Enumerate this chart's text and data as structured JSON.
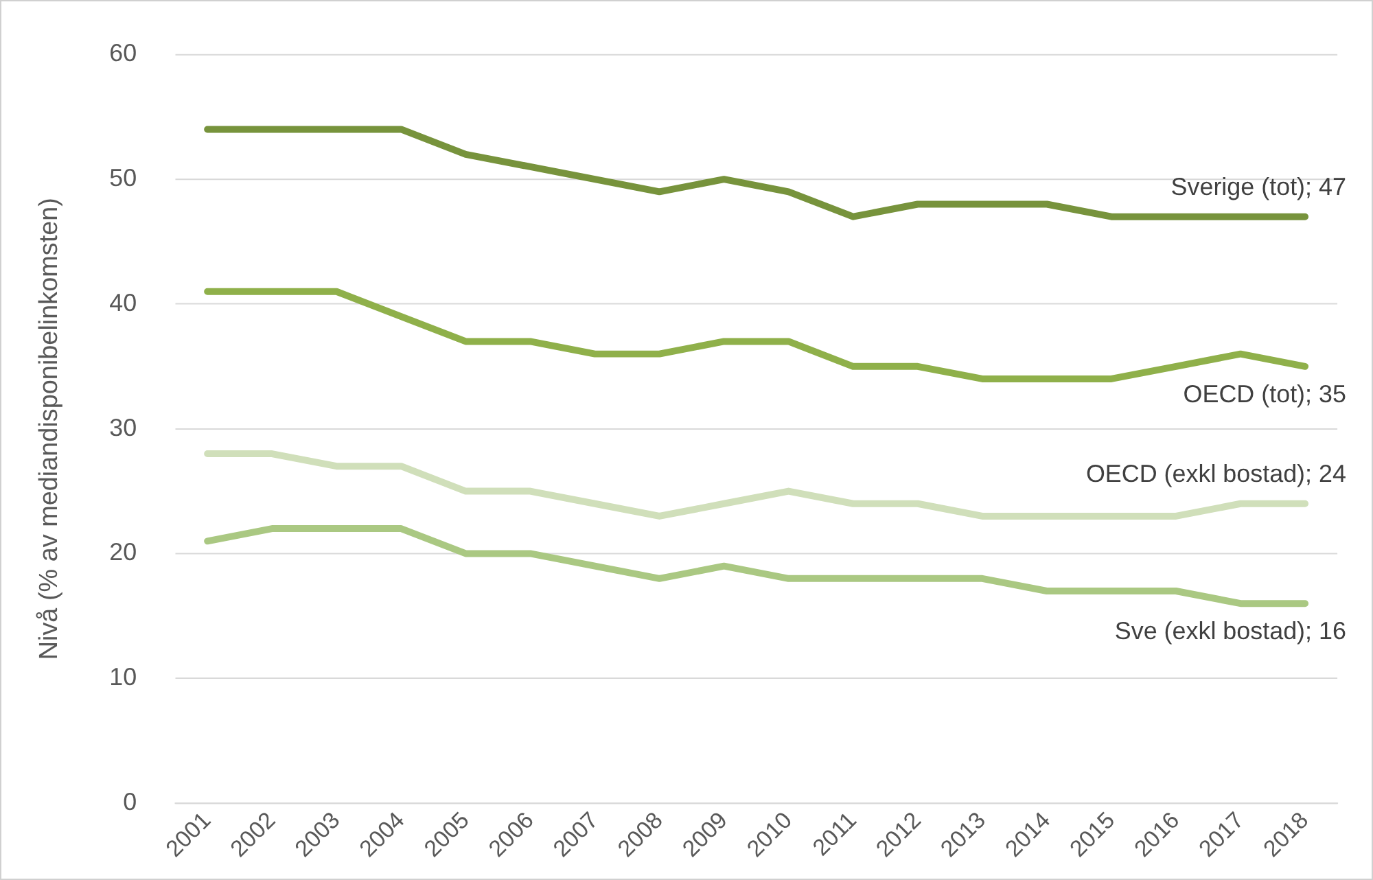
{
  "chart_data": {
    "type": "line",
    "ylabel": "Nivå (% av mediandisponibelinkomsten)",
    "categories": [
      "2001",
      "2002",
      "2003",
      "2004",
      "2005",
      "2006",
      "2007",
      "2008",
      "2009",
      "2010",
      "2011",
      "2012",
      "2013",
      "2014",
      "2015",
      "2016",
      "2017",
      "2018"
    ],
    "series": [
      {
        "color": "#77933c",
        "values": [
          54,
          54,
          54,
          54,
          52,
          51,
          50,
          49,
          50,
          49,
          47,
          48,
          48,
          48,
          47,
          47,
          47,
          47
        ]
      },
      {
        "color": "#8fb04a",
        "values": [
          41,
          41,
          41,
          39,
          37,
          37,
          36,
          36,
          37,
          37,
          35,
          35,
          34,
          34,
          34,
          35,
          36,
          35
        ]
      },
      {
        "color": "#d0dfba",
        "values": [
          28,
          28,
          27,
          27,
          25,
          25,
          24,
          23,
          24,
          25,
          24,
          24,
          23,
          23,
          23,
          23,
          24,
          24
        ]
      },
      {
        "color": "#aac882",
        "values": [
          21,
          22,
          22,
          22,
          20,
          20,
          19,
          18,
          19,
          18,
          18,
          18,
          18,
          17,
          17,
          17,
          16,
          16
        ]
      }
    ],
    "ylim": [
      0,
      60
    ],
    "yticks": [
      0,
      10,
      20,
      30,
      40,
      50,
      60
    ],
    "grid": "y",
    "legend": false,
    "marker": "none",
    "line_style": "solid",
    "annotations": [
      {
        "text": "Sverige (tot); 47",
        "x": "2018",
        "y": 47
      },
      {
        "text": "OECD (tot); 35",
        "x": "2018",
        "y": 35
      },
      {
        "text": "OECD (exkl bostad); 24",
        "x": "2018",
        "y": 24
      },
      {
        "text": "Sve (exkl bostad); 16",
        "x": "2018",
        "y": 16
      }
    ]
  }
}
